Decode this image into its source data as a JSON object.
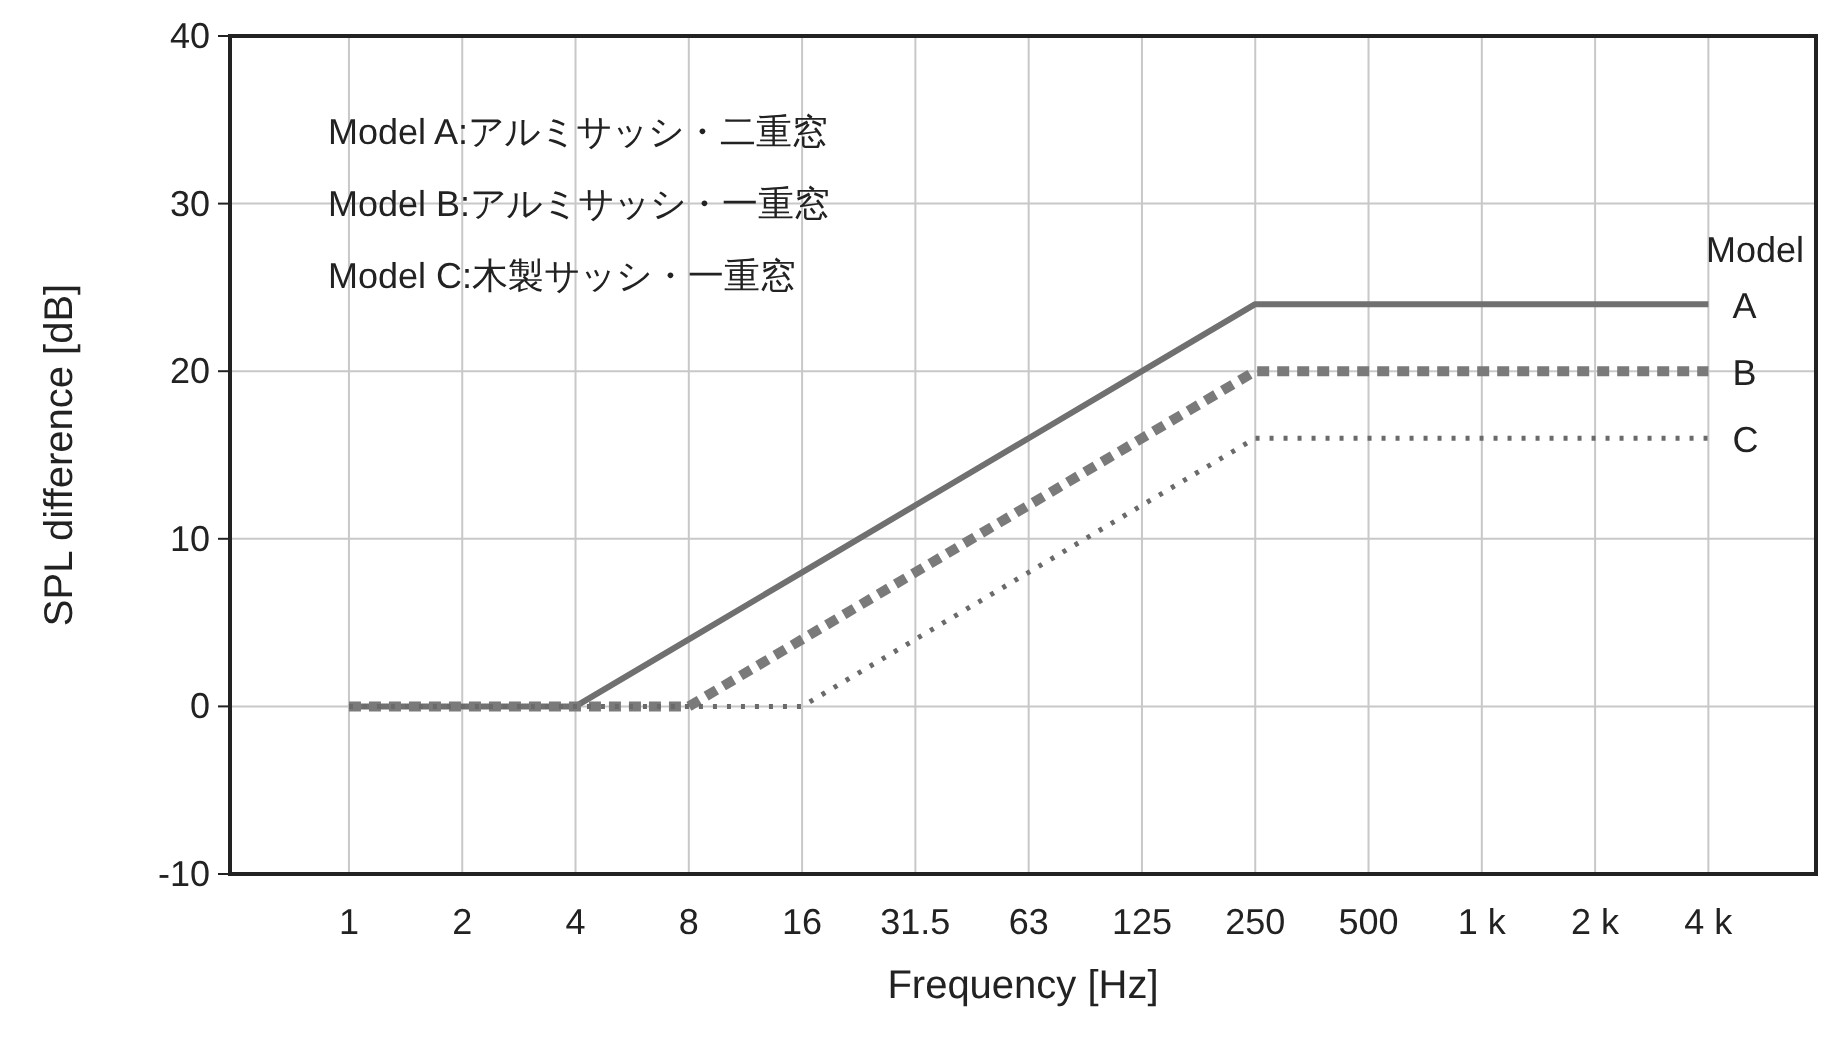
{
  "chart_data": {
    "type": "line",
    "xlabel": "Frequency [Hz]",
    "ylabel": "SPL  difference  [dB]",
    "legend_title": "Model",
    "categories": [
      "1",
      "2",
      "4",
      "8",
      "16",
      "31.5",
      "63",
      "125",
      "250",
      "500",
      "1 k",
      "2 k",
      "4 k"
    ],
    "series": [
      {
        "name": "A",
        "color": "#707070",
        "line_style": "solid",
        "values": [
          0,
          0,
          0,
          4,
          8,
          12,
          16,
          20,
          24,
          24,
          24,
          24,
          24
        ]
      },
      {
        "name": "B",
        "color": "#7a7a7a",
        "line_style": "dashed",
        "values": [
          0,
          0,
          0,
          0,
          4,
          8,
          12,
          16,
          20,
          20,
          20,
          20,
          20
        ]
      },
      {
        "name": "C",
        "color": "#6a6a6a",
        "line_style": "dotted",
        "values": [
          0,
          0,
          0,
          0,
          0,
          4,
          8,
          12,
          16,
          16,
          16,
          16,
          16
        ]
      }
    ],
    "ylim": [
      -10,
      40
    ],
    "yticks": [
      -10,
      0,
      10,
      20,
      30,
      40
    ],
    "grid": true,
    "legend": "right",
    "annotations": [
      "Model A:アルミサッシ・二重窓",
      "Model B:アルミサッシ・一重窓",
      "Model C:木製サッシ・一重窓"
    ]
  }
}
